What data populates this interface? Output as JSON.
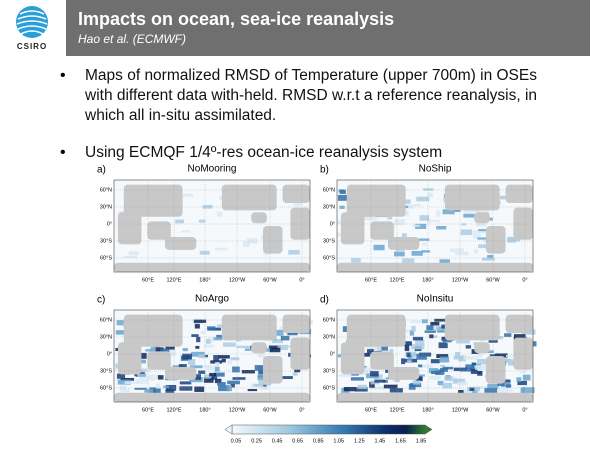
{
  "header": {
    "logo": "CSIRO",
    "title": "Impacts on ocean, sea-ice reanalysis",
    "subtitle": "Hao et al. (ECMWF)"
  },
  "bullets": [
    "Maps of normalized RMSD of Temperature (upper 700m) in OSEs with different data with-held. RMSD w.r.t a reference reanalysis, in which all in-situ assimilated.",
    "Using ECMQF 1/4º-res ocean-ice reanalysis system"
  ],
  "panels": [
    {
      "label": "a)",
      "title": "NoMooring"
    },
    {
      "label": "b)",
      "title": "NoShip"
    },
    {
      "label": "c)",
      "title": "NoArgo"
    },
    {
      "label": "d)",
      "title": "NoInsitu"
    }
  ],
  "map_axes": {
    "lat_labels": [
      "60°N",
      "30°N",
      "0°",
      "30°S",
      "60°S"
    ],
    "lon_labels": [
      "60°E",
      "120°E",
      "180°",
      "120°W",
      "60°W",
      "0°"
    ]
  },
  "colorbar": {
    "labels": [
      "0.05",
      "0.25",
      "0.45",
      "0.65",
      "0.85",
      "1.05",
      "1.25",
      "1.45",
      "1.65",
      "1.85"
    ]
  }
}
